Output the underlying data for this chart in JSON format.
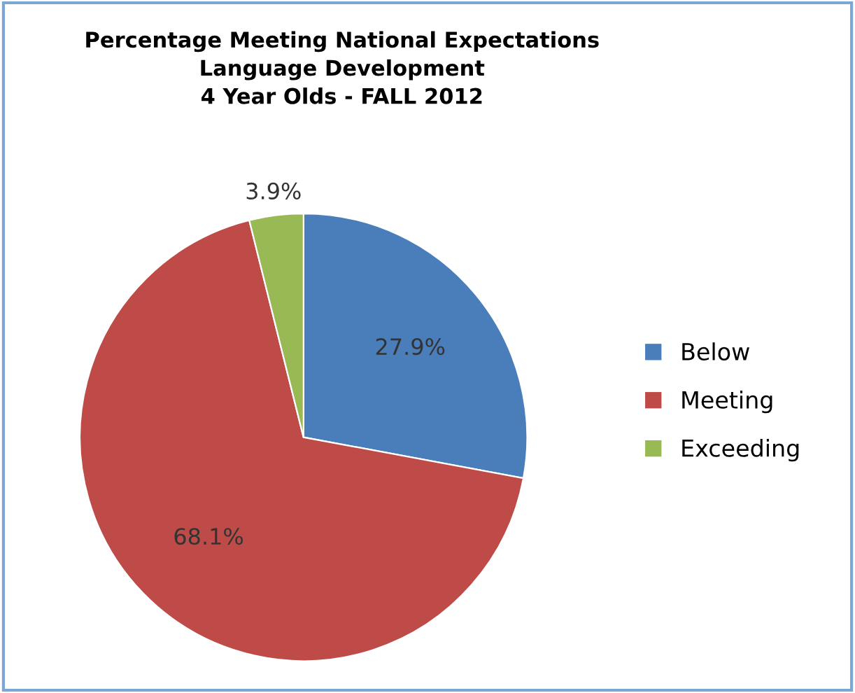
{
  "chart_data": {
    "type": "pie",
    "title": "Percentage Meeting National Expectations\nLanguage Development\n4 Year Olds - FALL 2012",
    "categories": [
      "Below",
      "Meeting",
      "Exceeding"
    ],
    "values": [
      27.9,
      68.1,
      3.9
    ],
    "colors": [
      "#4a7ebb",
      "#be4b48",
      "#98b954"
    ],
    "value_labels": [
      "27.9%",
      "68.1%",
      "3.9%"
    ],
    "legend": "right"
  }
}
